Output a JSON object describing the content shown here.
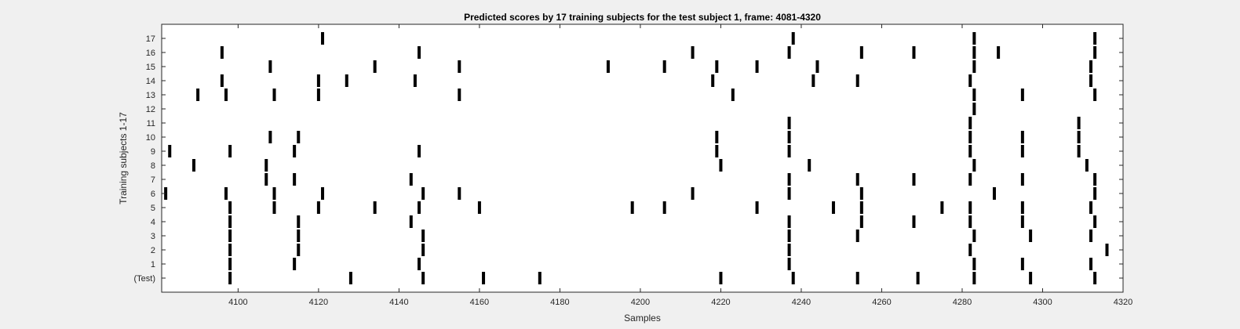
{
  "chart_data": {
    "type": "scatter",
    "title": "Predicted scores by 17 training subjects for the test subject 1, frame: 4081-4320",
    "xlabel": "Samples",
    "ylabel": "Training subjects 1-17",
    "xlim": [
      4081,
      4320
    ],
    "x_ticks": [
      4100,
      4120,
      4140,
      4160,
      4180,
      4200,
      4220,
      4240,
      4260,
      4280,
      4300,
      4320
    ],
    "y_tick_labels": [
      "(Test)",
      "1",
      "2",
      "3",
      "4",
      "5",
      "6",
      "7",
      "8",
      "9",
      "10",
      "11",
      "12",
      "13",
      "14",
      "15",
      "16",
      "17"
    ],
    "grid": false,
    "marker_color": "#000000",
    "series": [
      {
        "row": "(Test)",
        "x": [
          4098,
          4128,
          4146,
          4161,
          4175,
          4220,
          4238,
          4254,
          4269,
          4283,
          4297,
          4313
        ]
      },
      {
        "row": "1",
        "x": [
          4098,
          4114,
          4145,
          4237,
          4283,
          4295,
          4312
        ]
      },
      {
        "row": "2",
        "x": [
          4098,
          4115,
          4146,
          4237,
          4282,
          4316
        ]
      },
      {
        "row": "3",
        "x": [
          4098,
          4115,
          4146,
          4237,
          4254,
          4283,
          4297,
          4312
        ]
      },
      {
        "row": "4",
        "x": [
          4098,
          4115,
          4143,
          4237,
          4255,
          4268,
          4282,
          4295,
          4313
        ]
      },
      {
        "row": "5",
        "x": [
          4098,
          4109,
          4120,
          4134,
          4145,
          4160,
          4198,
          4206,
          4229,
          4248,
          4255,
          4275,
          4282,
          4295,
          4312
        ]
      },
      {
        "row": "6",
        "x": [
          4082,
          4097,
          4109,
          4121,
          4146,
          4155,
          4213,
          4237,
          4255,
          4288,
          4313
        ]
      },
      {
        "row": "7",
        "x": [
          4107,
          4114,
          4143,
          4237,
          4254,
          4268,
          4282,
          4295,
          4313
        ]
      },
      {
        "row": "8",
        "x": [
          4089,
          4107,
          4220,
          4242,
          4283,
          4311
        ]
      },
      {
        "row": "9",
        "x": [
          4083,
          4098,
          4114,
          4145,
          4219,
          4237,
          4282,
          4295,
          4309
        ]
      },
      {
        "row": "10",
        "x": [
          4108,
          4115,
          4219,
          4237,
          4282,
          4295,
          4309
        ]
      },
      {
        "row": "11",
        "x": [
          4237,
          4282,
          4309
        ]
      },
      {
        "row": "12",
        "x": [
          4283
        ]
      },
      {
        "row": "13",
        "x": [
          4090,
          4097,
          4109,
          4120,
          4155,
          4223,
          4283,
          4295,
          4313
        ]
      },
      {
        "row": "14",
        "x": [
          4096,
          4120,
          4127,
          4144,
          4218,
          4243,
          4254,
          4282,
          4312
        ]
      },
      {
        "row": "15",
        "x": [
          4108,
          4134,
          4155,
          4192,
          4206,
          4219,
          4229,
          4244,
          4283,
          4312
        ]
      },
      {
        "row": "16",
        "x": [
          4096,
          4145,
          4213,
          4237,
          4255,
          4268,
          4283,
          4289,
          4313
        ]
      },
      {
        "row": "17",
        "x": [
          4121,
          4238,
          4283,
          4313
        ]
      }
    ]
  }
}
